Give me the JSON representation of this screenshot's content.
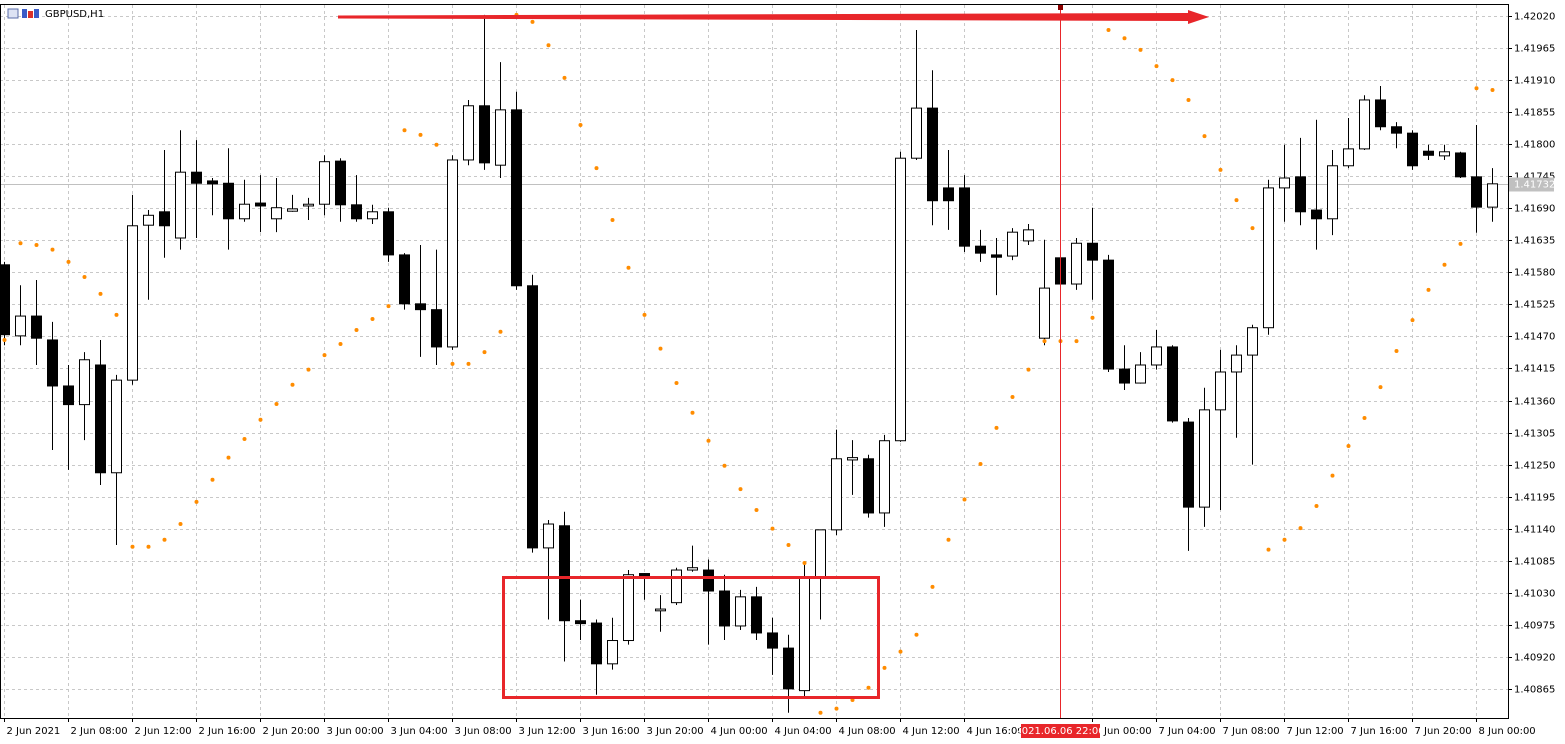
{
  "chart_data": {
    "type": "candlestick",
    "title": "GBPUSD,H1",
    "categories": [
      "2 Jun 2021",
      null,
      null,
      null,
      "2 Jun 08:00",
      null,
      null,
      null,
      "2 Jun 12:00",
      null,
      null,
      null,
      "2 Jun 16:00",
      null,
      null,
      null,
      "2 Jun 20:00",
      null,
      null,
      null,
      "3 Jun 00:00",
      null,
      null,
      null,
      "3 Jun 04:00",
      null,
      null,
      null,
      "3 Jun 08:00",
      null,
      null,
      null,
      "3 Jun 12:00",
      null,
      null,
      null,
      "3 Jun 16:00",
      null,
      null,
      null,
      "3 Jun 20:00",
      null,
      null,
      null,
      "4 Jun 00:00",
      null,
      null,
      null,
      "4 Jun 04:00",
      null,
      null,
      null,
      "4 Jun 08:00",
      null,
      null,
      null,
      "4 Jun 12:00",
      null,
      null,
      null,
      "4 Jun 16:00",
      null,
      null,
      null,
      null,
      null,
      null,
      null,
      "7 Jun 00:00",
      null,
      null,
      null,
      "7 Jun 04:00",
      null,
      null,
      null,
      "7 Jun 08:00",
      null,
      null,
      null,
      "7 Jun 12:00",
      null,
      null,
      null,
      "7 Jun 16:00",
      null,
      null,
      null,
      "7 Jun 20:00",
      null,
      null,
      null,
      "8 Jun 00:00",
      null
    ],
    "open": [
      1.41593,
      1.41471,
      1.41505,
      1.41464,
      1.41385,
      1.41353,
      1.41421,
      1.41236,
      1.41395,
      1.41661,
      1.41684,
      1.41639,
      1.41752,
      1.41737,
      1.41733,
      1.41672,
      1.41699,
      1.41672,
      1.41685,
      1.41694,
      1.41697,
      1.41771,
      1.41696,
      1.41672,
      1.41684,
      1.4161,
      1.41526,
      1.41516,
      1.41452,
      1.41773,
      1.41866,
      1.41764,
      1.41859,
      1.41557,
      1.41107,
      1.41145,
      1.40982,
      1.40978,
      1.40908,
      1.40948,
      1.41063,
      1.40999,
      1.41013,
      1.41069,
      1.41069,
      1.41033,
      1.40973,
      1.41023,
      1.40961,
      1.40935,
      1.40862,
      1.41057,
      1.41138,
      1.41258,
      1.4126,
      1.41167,
      1.41291,
      1.41776,
      1.41862,
      1.41725,
      1.41725,
      1.41625,
      1.4161,
      1.41608,
      1.41634,
      1.41467,
      1.41605,
      1.4156,
      1.4163,
      1.41601,
      1.41414,
      1.4139,
      1.41421,
      1.41452,
      1.41323,
      1.41177,
      1.41344,
      1.41409,
      1.41438,
      1.41485,
      1.41725,
      1.41744,
      1.41687,
      1.41672,
      1.41763,
      1.41792,
      1.41876,
      1.4183,
      1.41819,
      1.41788,
      1.4178,
      1.41785,
      1.41744,
      1.41692
    ],
    "high": [
      1.41598,
      1.41558,
      1.41567,
      1.41495,
      1.41421,
      1.41443,
      1.41464,
      1.41404,
      1.41713,
      1.41687,
      1.4179,
      1.41824,
      1.41807,
      1.41742,
      1.41793,
      1.41739,
      1.41747,
      1.41742,
      1.41713,
      1.41708,
      1.41781,
      1.41776,
      1.41747,
      1.41696,
      1.41691,
      1.41613,
      1.41627,
      1.41619,
      1.41781,
      1.41876,
      1.42022,
      1.41941,
      1.4189,
      1.41576,
      1.41155,
      1.41169,
      1.41018,
      1.40984,
      1.40987,
      1.41069,
      1.41064,
      1.41026,
      1.41073,
      1.41111,
      1.41087,
      1.41061,
      1.41035,
      1.4104,
      1.40987,
      1.40958,
      1.41081,
      1.41138,
      1.4131,
      1.41292,
      1.41267,
      1.41301,
      1.41787,
      1.41996,
      1.41927,
      1.4179,
      1.41747,
      1.41653,
      1.41639,
      1.41656,
      1.41663,
      1.41636,
      1.4161,
      1.41639,
      1.41691,
      1.4161,
      1.41455,
      1.41443,
      1.41481,
      1.41455,
      1.4133,
      1.41382,
      1.41447,
      1.41455,
      1.4149,
      1.41739,
      1.41799,
      1.41811,
      1.41842,
      1.4179,
      1.41845,
      1.41884,
      1.419,
      1.41838,
      1.41824,
      1.41799,
      1.41799,
      1.41787,
      1.41833,
      1.41759
    ],
    "low": [
      1.41455,
      1.41455,
      1.41421,
      1.41275,
      1.41241,
      1.41292,
      1.41215,
      1.41112,
      1.41387,
      1.41533,
      1.41605,
      1.41619,
      1.41639,
      1.41678,
      1.41619,
      1.41667,
      1.41649,
      1.41649,
      1.41684,
      1.4167,
      1.41678,
      1.41667,
      1.41667,
      1.41663,
      1.41598,
      1.41516,
      1.41435,
      1.41421,
      1.41447,
      1.41764,
      1.41756,
      1.41742,
      1.4155,
      1.41099,
      1.40984,
      1.40912,
      1.40949,
      1.40855,
      1.40898,
      1.40941,
      1.41018,
      1.40963,
      1.41009,
      1.41066,
      1.40941,
      1.40949,
      1.40966,
      1.40949,
      1.40889,
      1.40824,
      1.4085,
      1.40984,
      1.41129,
      1.41198,
      1.41159,
      1.41143,
      1.41289,
      1.41773,
      1.41661,
      1.41653,
      1.41615,
      1.41598,
      1.41541,
      1.41601,
      1.41627,
      1.41455,
      1.41541,
      1.4155,
      1.41533,
      1.41409,
      1.41378,
      1.41389,
      1.41413,
      1.41322,
      1.41102,
      1.41143,
      1.41172,
      1.41296,
      1.4125,
      1.41473,
      1.41667,
      1.41661,
      1.41619,
      1.41644,
      1.41759,
      1.4179,
      1.41824,
      1.41793,
      1.41756,
      1.41773,
      1.41773,
      1.41742,
      1.41648,
      1.41667
    ],
    "close": [
      1.41473,
      1.41505,
      1.41467,
      1.41385,
      1.41353,
      1.4143,
      1.41236,
      1.41395,
      1.4166,
      1.41678,
      1.4166,
      1.41752,
      1.41733,
      1.41732,
      1.41672,
      1.41697,
      1.41694,
      1.41691,
      1.41689,
      1.41697,
      1.4177,
      1.41696,
      1.41672,
      1.41684,
      1.4161,
      1.41526,
      1.41516,
      1.41452,
      1.41773,
      1.41866,
      1.41768,
      1.41859,
      1.41557,
      1.41107,
      1.41148,
      1.40982,
      1.40977,
      1.40908,
      1.40948,
      1.41061,
      1.41059,
      1.41002,
      1.41069,
      1.41073,
      1.41033,
      1.40973,
      1.41023,
      1.40961,
      1.40935,
      1.40865,
      1.41057,
      1.41138,
      1.4126,
      1.41262,
      1.41167,
      1.41291,
      1.41776,
      1.41862,
      1.41703,
      1.41703,
      1.41625,
      1.41613,
      1.41606,
      1.41649,
      1.41653,
      1.41553,
      1.4156,
      1.4163,
      1.41601,
      1.41414,
      1.4139,
      1.41421,
      1.41452,
      1.41325,
      1.41177,
      1.41344,
      1.41409,
      1.41438,
      1.41485,
      1.41725,
      1.41742,
      1.41684,
      1.41672,
      1.41763,
      1.41792,
      1.41876,
      1.4183,
      1.41819,
      1.41763,
      1.41781,
      1.41787,
      1.41744,
      1.41692,
      1.41732
    ],
    "bull_color": "#ffffff",
    "bear_color": "#000000",
    "sar": {
      "color": "#ff8c00",
      "values": [
        1.41464,
        1.4163,
        1.41627,
        1.41619,
        1.41598,
        1.41572,
        1.41543,
        1.41507,
        1.41109,
        1.41109,
        1.41121,
        1.41148,
        1.41186,
        1.41224,
        1.41262,
        1.41294,
        1.41327,
        1.41354,
        1.41387,
        1.41413,
        1.41438,
        1.41457,
        1.41481,
        1.415,
        1.41522,
        1.41824,
        1.41816,
        1.41799,
        1.41423,
        1.41423,
        1.41443,
        1.41478,
        1.42022,
        1.4201,
        1.4197,
        1.41914,
        1.41833,
        1.41759,
        1.4167,
        1.41588,
        1.41507,
        1.41449,
        1.4139,
        1.41339,
        1.41291,
        1.41248,
        1.41208,
        1.41172,
        1.4114,
        1.41112,
        1.41081,
        1.40824,
        1.40831,
        1.40846,
        1.40867,
        1.40901,
        1.40929,
        1.40958,
        1.4104,
        1.41121,
        1.4119,
        1.41251,
        1.41313,
        1.41366,
        1.41413,
        1.41462,
        1.41462,
        1.41462,
        1.41502,
        1.41996,
        1.41982,
        1.41962,
        1.41934,
        1.4191,
        1.41876,
        1.41814,
        1.41756,
        1.41704,
        1.41656,
        1.41104,
        1.41121,
        1.41141,
        1.41179,
        1.41231,
        1.41282,
        1.4133,
        1.41383,
        1.41445,
        1.41498,
        1.4155,
        1.41593,
        1.41629,
        1.41896,
        1.41893
      ]
    },
    "last_price": 1.41732,
    "vline_label": "2021.06.06 22:00",
    "ylim": [
      1.40815,
      1.42039
    ],
    "yticks": [
      {
        "value": 1.4202,
        "label": "1.42020"
      },
      1.41965,
      {
        "value": 1.4191,
        "label": "1.41910"
      },
      1.41855,
      {
        "value": 1.418,
        "label": "1.41800"
      },
      1.41745,
      {
        "value": 1.4169,
        "label": "1.41690"
      },
      1.41635,
      {
        "value": 1.4158,
        "label": "1.41580"
      },
      1.41525,
      {
        "value": 1.4147,
        "label": "1.41470"
      },
      1.41415,
      {
        "value": 1.4136,
        "label": "1.41360"
      },
      1.41305,
      {
        "value": 1.4125,
        "label": "1.41250"
      },
      1.41195,
      {
        "value": 1.4114,
        "label": "1.41140"
      },
      1.41085,
      {
        "value": 1.4103,
        "label": "1.41030"
      },
      1.40975,
      {
        "value": 1.4092,
        "label": "1.40920"
      },
      1.40865
    ],
    "grid": true
  }
}
